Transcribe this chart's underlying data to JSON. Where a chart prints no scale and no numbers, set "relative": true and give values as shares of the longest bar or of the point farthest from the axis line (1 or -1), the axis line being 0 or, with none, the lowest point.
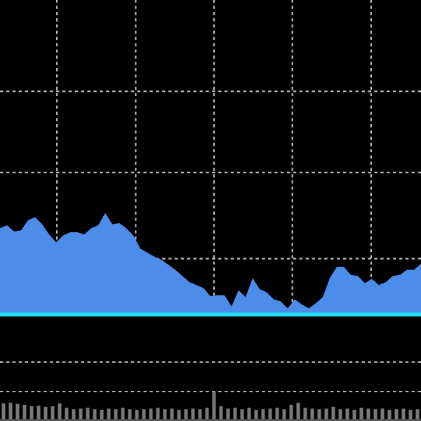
{
  "chart_data": [
    {
      "type": "area",
      "relative": true,
      "grid": true,
      "color": "#4d8ce8",
      "categories": [
        null,
        null,
        null,
        null,
        null,
        null,
        null,
        null,
        null,
        null,
        null,
        null,
        null,
        null,
        null,
        null,
        null,
        null,
        null,
        null,
        null,
        null,
        null,
        null,
        null,
        null,
        null,
        null,
        null,
        null,
        null,
        null,
        null,
        null,
        null,
        null,
        null,
        null,
        null,
        null,
        null,
        null,
        null,
        null,
        null,
        null,
        null,
        null,
        null,
        null,
        null,
        null,
        null,
        null,
        null,
        null,
        null,
        null,
        null,
        null,
        null
      ],
      "values": [
        0.85,
        0.88,
        0.82,
        0.83,
        0.93,
        0.96,
        0.89,
        0.79,
        0.71,
        0.78,
        0.81,
        0.81,
        0.79,
        0.85,
        0.88,
        1.0,
        0.89,
        0.9,
        0.85,
        0.78,
        0.65,
        0.61,
        0.57,
        0.54,
        0.49,
        0.44,
        0.38,
        0.32,
        0.29,
        0.26,
        0.18,
        0.19,
        0.19,
        0.08,
        0.24,
        0.17,
        0.36,
        0.25,
        0.22,
        0.15,
        0.13,
        0.06,
        0.15,
        0.1,
        0.06,
        0.11,
        0.17,
        0.36,
        0.47,
        0.47,
        0.39,
        0.38,
        0.31,
        0.35,
        0.29,
        0.32,
        0.38,
        0.39,
        0.44,
        0.44,
        0.5
      ]
    },
    {
      "type": "bar",
      "relative": true,
      "grid": "y",
      "color": "#7a7a7a",
      "categories": [
        null,
        null,
        null,
        null,
        null,
        null,
        null,
        null,
        null,
        null,
        null,
        null,
        null,
        null,
        null,
        null,
        null,
        null,
        null,
        null,
        null,
        null,
        null,
        null,
        null,
        null,
        null,
        null,
        null,
        null,
        null,
        null,
        null,
        null,
        null,
        null,
        null,
        null,
        null,
        null,
        null,
        null,
        null,
        null,
        null,
        null,
        null,
        null,
        null,
        null,
        null,
        null,
        null,
        null,
        null,
        null,
        null,
        null,
        null,
        null
      ],
      "values": [
        0.6,
        0.62,
        0.58,
        0.55,
        0.5,
        0.52,
        0.48,
        0.5,
        0.6,
        0.45,
        0.4,
        0.42,
        0.45,
        0.4,
        0.38,
        0.42,
        0.4,
        0.45,
        0.4,
        0.38,
        0.4,
        0.42,
        0.45,
        0.4,
        0.42,
        0.38,
        0.4,
        0.42,
        0.4,
        0.45,
        1.0,
        0.5,
        0.42,
        0.45,
        0.4,
        0.45,
        0.38,
        0.4,
        0.42,
        0.45,
        0.4,
        0.55,
        0.62,
        0.45,
        0.42,
        0.4,
        0.42,
        0.48,
        0.4,
        0.42,
        0.38,
        0.45,
        0.42,
        0.4,
        0.42,
        0.38,
        0.4,
        0.42,
        0.38,
        0.4
      ]
    }
  ]
}
